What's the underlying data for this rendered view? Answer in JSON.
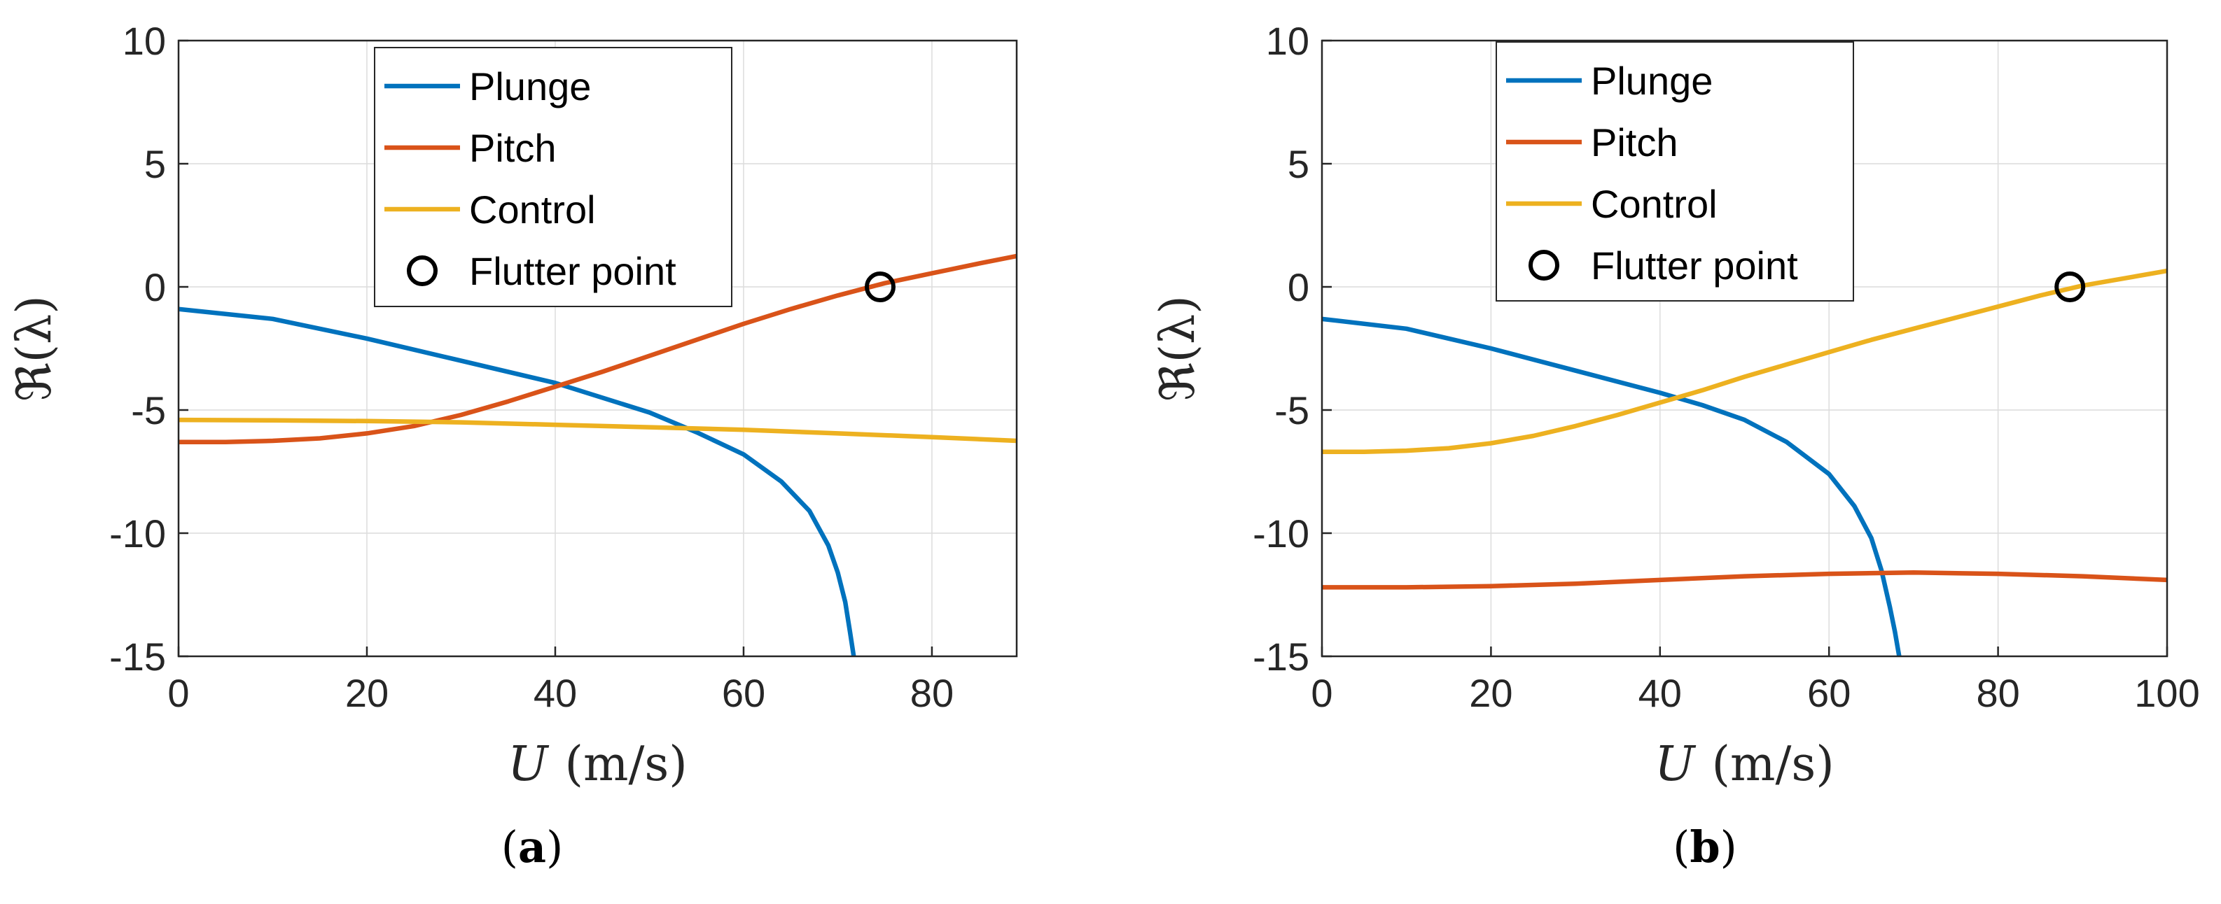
{
  "chart_data": [
    {
      "type": "line",
      "panel_label": "a",
      "xlabel_var": "U",
      "xlabel_unit": "(m/s)",
      "ylabel": "ℜ(λ)",
      "xlim": [
        0,
        89
      ],
      "ylim": [
        -15,
        10
      ],
      "xticks": [
        0,
        20,
        40,
        60,
        80
      ],
      "yticks": [
        10,
        5,
        0,
        -5,
        -10,
        -15
      ],
      "grid": true,
      "legend_position": "top-center",
      "series": [
        {
          "name": "Plunge",
          "color": "#0072bd",
          "x": [
            0,
            10,
            20,
            30,
            40,
            50,
            55,
            60,
            64,
            67,
            69,
            70,
            70.8,
            71.3,
            71.7
          ],
          "y": [
            -0.9,
            -1.3,
            -2.1,
            -3.0,
            -3.9,
            -5.1,
            -5.9,
            -6.8,
            -7.9,
            -9.1,
            -10.5,
            -11.6,
            -12.8,
            -14.0,
            -15.0
          ]
        },
        {
          "name": "Pitch",
          "color": "#d95319",
          "x": [
            0,
            5,
            10,
            15,
            20,
            25,
            30,
            35,
            40,
            45,
            50,
            55,
            60,
            65,
            70,
            75,
            80,
            85,
            89
          ],
          "y": [
            -6.3,
            -6.3,
            -6.25,
            -6.15,
            -5.95,
            -5.65,
            -5.2,
            -4.65,
            -4.05,
            -3.45,
            -2.8,
            -2.15,
            -1.5,
            -0.9,
            -0.35,
            0.15,
            0.55,
            0.95,
            1.25
          ]
        },
        {
          "name": "Control",
          "color": "#edb120",
          "x": [
            0,
            10,
            20,
            30,
            40,
            50,
            60,
            70,
            80,
            89
          ],
          "y": [
            -5.4,
            -5.42,
            -5.45,
            -5.5,
            -5.6,
            -5.7,
            -5.8,
            -5.95,
            -6.1,
            -6.25
          ]
        }
      ],
      "legend": [
        "Plunge",
        "Pitch",
        "Control",
        "Flutter point"
      ],
      "flutter_point": {
        "x": 74.5,
        "y": 0.0
      }
    },
    {
      "type": "line",
      "panel_label": "b",
      "xlabel_var": "U",
      "xlabel_unit": "(m/s)",
      "ylabel": "ℜ(λ)",
      "xlim": [
        0,
        100
      ],
      "ylim": [
        -15,
        10
      ],
      "xticks": [
        0,
        20,
        40,
        60,
        80,
        100
      ],
      "yticks": [
        10,
        5,
        0,
        -5,
        -10,
        -15
      ],
      "grid": true,
      "legend_position": "top-center",
      "series": [
        {
          "name": "Plunge",
          "color": "#0072bd",
          "x": [
            0,
            10,
            20,
            30,
            40,
            45,
            50,
            55,
            60,
            63,
            65,
            66.2,
            67.2,
            67.8,
            68.3
          ],
          "y": [
            -1.3,
            -1.7,
            -2.5,
            -3.4,
            -4.3,
            -4.8,
            -5.4,
            -6.3,
            -7.6,
            -8.9,
            -10.2,
            -11.5,
            -13.0,
            -14.0,
            -15.0
          ]
        },
        {
          "name": "Pitch",
          "color": "#d95319",
          "x": [
            0,
            10,
            20,
            30,
            40,
            50,
            60,
            70,
            80,
            90,
            100
          ],
          "y": [
            -12.2,
            -12.2,
            -12.15,
            -12.05,
            -11.9,
            -11.75,
            -11.65,
            -11.6,
            -11.65,
            -11.75,
            -11.9
          ]
        },
        {
          "name": "Control",
          "color": "#edb120",
          "x": [
            0,
            5,
            10,
            15,
            20,
            25,
            30,
            35,
            40,
            45,
            50,
            55,
            60,
            65,
            70,
            75,
            80,
            85,
            90,
            95,
            100
          ],
          "y": [
            -6.7,
            -6.7,
            -6.65,
            -6.55,
            -6.35,
            -6.05,
            -5.65,
            -5.2,
            -4.7,
            -4.2,
            -3.65,
            -3.15,
            -2.65,
            -2.15,
            -1.7,
            -1.25,
            -0.8,
            -0.35,
            0.05,
            0.35,
            0.65
          ]
        }
      ],
      "legend": [
        "Plunge",
        "Pitch",
        "Control",
        "Flutter point"
      ],
      "flutter_point": {
        "x": 88.5,
        "y": 0.0
      }
    }
  ]
}
